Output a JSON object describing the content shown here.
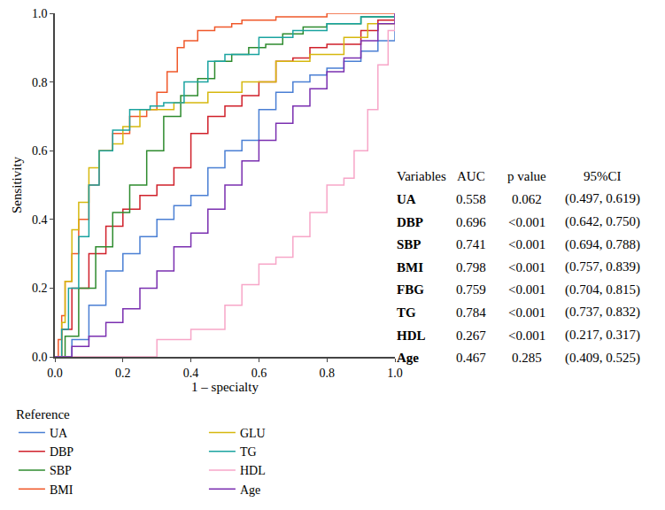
{
  "chart_data": {
    "type": "line",
    "x_label": "1 – specialty",
    "y_label": "Sensitivity",
    "legend_title": "Reference",
    "legend": "bottom left",
    "grid": false,
    "xlim": [
      0,
      1
    ],
    "ylim": [
      0,
      1
    ],
    "xticks": [
      {
        "value": 0,
        "label": "0.0"
      },
      0.2,
      0.4,
      0.6,
      0.8,
      {
        "value": 1,
        "label": "1.0"
      }
    ],
    "yticks": [
      {
        "value": 0,
        "label": "0.0"
      },
      0.2,
      0.4,
      0.6,
      0.8,
      {
        "value": 1,
        "label": "1.0"
      }
    ],
    "series": [
      {
        "name": "UA",
        "color": "#4a7fd4",
        "x": [
          0,
          0.05,
          0.1,
          0.15,
          0.2,
          0.25,
          0.3,
          0.35,
          0.4,
          0.45,
          0.5,
          0.55,
          0.6,
          0.65,
          0.7,
          0.75,
          0.8,
          0.85,
          0.9,
          0.95,
          1
        ],
        "y": [
          0,
          0.05,
          0.15,
          0.25,
          0.3,
          0.35,
          0.4,
          0.44,
          0.47,
          0.55,
          0.6,
          0.63,
          0.72,
          0.77,
          0.8,
          0.82,
          0.84,
          0.86,
          0.89,
          0.92,
          1
        ]
      },
      {
        "name": "DBP",
        "color": "#d0202a",
        "x": [
          0,
          0.02,
          0.05,
          0.1,
          0.15,
          0.2,
          0.25,
          0.3,
          0.35,
          0.4,
          0.45,
          0.5,
          0.55,
          0.6,
          0.65,
          0.7,
          0.75,
          0.8,
          0.9,
          0.95,
          1
        ],
        "y": [
          0,
          0.08,
          0.2,
          0.3,
          0.38,
          0.43,
          0.47,
          0.5,
          0.55,
          0.65,
          0.7,
          0.73,
          0.76,
          0.8,
          0.86,
          0.87,
          0.9,
          0.91,
          0.95,
          0.98,
          1
        ]
      },
      {
        "name": "SBP",
        "color": "#2e8b2e",
        "x": [
          0,
          0.03,
          0.07,
          0.12,
          0.17,
          0.22,
          0.27,
          0.32,
          0.37,
          0.42,
          0.47,
          0.52,
          0.57,
          0.62,
          0.67,
          0.73,
          0.8,
          0.9,
          1
        ],
        "y": [
          0,
          0.06,
          0.2,
          0.32,
          0.42,
          0.5,
          0.6,
          0.7,
          0.76,
          0.81,
          0.86,
          0.88,
          0.9,
          0.91,
          0.94,
          0.96,
          0.97,
          0.99,
          1
        ]
      },
      {
        "name": "BMI",
        "color": "#f0582a",
        "x": [
          0,
          0.01,
          0.02,
          0.03,
          0.05,
          0.07,
          0.1,
          0.13,
          0.17,
          0.22,
          0.27,
          0.3,
          0.33,
          0.36,
          0.38,
          0.42,
          0.47,
          0.52,
          0.55,
          0.65,
          0.8,
          1
        ],
        "y": [
          0,
          0.05,
          0.12,
          0.22,
          0.3,
          0.4,
          0.5,
          0.6,
          0.65,
          0.7,
          0.72,
          0.77,
          0.83,
          0.9,
          0.92,
          0.95,
          0.96,
          0.97,
          0.98,
          0.99,
          1,
          1
        ]
      },
      {
        "name": "GLU",
        "color": "#d6b80e",
        "x": [
          0,
          0.02,
          0.03,
          0.05,
          0.07,
          0.1,
          0.13,
          0.17,
          0.2,
          0.25,
          0.35,
          0.45,
          0.55,
          0.65,
          0.75,
          0.85,
          0.92,
          1
        ],
        "y": [
          0,
          0.1,
          0.22,
          0.37,
          0.45,
          0.55,
          0.6,
          0.62,
          0.67,
          0.72,
          0.74,
          0.77,
          0.8,
          0.86,
          0.88,
          0.93,
          0.97,
          1
        ]
      },
      {
        "name": "TG",
        "color": "#1aa3a0",
        "x": [
          0,
          0.02,
          0.04,
          0.07,
          0.1,
          0.13,
          0.17,
          0.22,
          0.28,
          0.32,
          0.38,
          0.45,
          0.5,
          0.6,
          0.7,
          0.8,
          0.9,
          1
        ],
        "y": [
          0,
          0.08,
          0.2,
          0.35,
          0.5,
          0.6,
          0.66,
          0.72,
          0.73,
          0.74,
          0.8,
          0.86,
          0.88,
          0.93,
          0.95,
          0.97,
          0.99,
          1
        ]
      },
      {
        "name": "HDL",
        "color": "#f7a6c8",
        "x": [
          0,
          0.3,
          0.4,
          0.5,
          0.55,
          0.6,
          0.65,
          0.7,
          0.75,
          0.8,
          0.85,
          0.88,
          0.92,
          0.95,
          0.98,
          1
        ],
        "y": [
          0,
          0.05,
          0.08,
          0.15,
          0.21,
          0.27,
          0.29,
          0.35,
          0.42,
          0.5,
          0.52,
          0.6,
          0.72,
          0.85,
          0.95,
          1
        ]
      },
      {
        "name": "Age",
        "color": "#7a2fb0",
        "x": [
          0,
          0.05,
          0.1,
          0.15,
          0.2,
          0.25,
          0.3,
          0.35,
          0.4,
          0.45,
          0.5,
          0.55,
          0.6,
          0.65,
          0.7,
          0.75,
          0.8,
          0.85,
          0.9,
          0.95,
          1
        ],
        "y": [
          0,
          0.03,
          0.06,
          0.1,
          0.14,
          0.2,
          0.25,
          0.32,
          0.36,
          0.43,
          0.5,
          0.57,
          0.63,
          0.68,
          0.73,
          0.78,
          0.83,
          0.87,
          0.92,
          0.97,
          1
        ]
      }
    ],
    "table": {
      "header": [
        "Variables",
        "AUC",
        "p value",
        "95%CI"
      ],
      "rows": [
        [
          "UA",
          "0.558",
          "0.062",
          "(0.497, 0.619)"
        ],
        [
          "DBP",
          "0.696",
          "<0.001",
          "(0.642, 0.750)"
        ],
        [
          "SBP",
          "0.741",
          "<0.001",
          "(0.694, 0.788)"
        ],
        [
          "BMI",
          "0.798",
          "<0.001",
          "(0.757, 0.839)"
        ],
        [
          "FBG",
          "0.759",
          "<0.001",
          "(0.704, 0.815)"
        ],
        [
          "TG",
          "0.784",
          "<0.001",
          "(0.737, 0.832)"
        ],
        [
          "HDL",
          "0.267",
          "<0.001",
          "(0.217, 0.317)"
        ],
        [
          "Age",
          "0.467",
          "0.285",
          "(0.409, 0.525)"
        ]
      ]
    }
  }
}
